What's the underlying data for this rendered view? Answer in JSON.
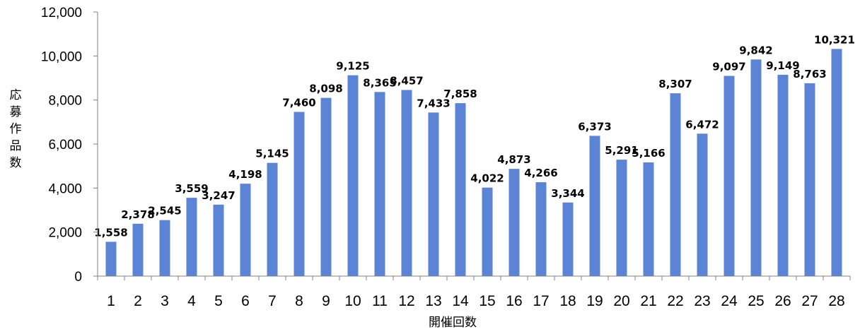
{
  "chart_data": {
    "type": "bar",
    "categories": [
      "1",
      "2",
      "3",
      "4",
      "5",
      "6",
      "7",
      "8",
      "9",
      "10",
      "11",
      "12",
      "13",
      "14",
      "15",
      "16",
      "17",
      "18",
      "19",
      "20",
      "21",
      "22",
      "23",
      "24",
      "25",
      "26",
      "27",
      "28"
    ],
    "values": [
      1558,
      2378,
      2545,
      3559,
      3247,
      4198,
      5145,
      7460,
      8098,
      9125,
      8365,
      8457,
      7433,
      7858,
      4022,
      4873,
      4266,
      3344,
      6373,
      5291,
      5166,
      8307,
      6472,
      9097,
      9842,
      9149,
      8763,
      10321
    ],
    "value_labels": [
      "1,558",
      "2,378",
      "2,545",
      "3,559",
      "3,247",
      "4,198",
      "5,145",
      "7,460",
      "8,098",
      "9,125",
      "8,365",
      "8,457",
      "7,433",
      "7,858",
      "4,022",
      "4,873",
      "4,266",
      "3,344",
      "6,373",
      "5,291",
      "5,166",
      "8,307",
      "6,472",
      "9,097",
      "9,842",
      "9,149",
      "8,763",
      "10,321"
    ],
    "y_ticks": [
      0,
      2000,
      4000,
      6000,
      8000,
      10000,
      12000
    ],
    "y_tick_labels": [
      "0",
      "2,000",
      "4,000",
      "6,000",
      "8,000",
      "10,000",
      "12,000"
    ],
    "ylim": [
      0,
      12000
    ],
    "xlabel": "開催回数",
    "ylabel": "応募作品数",
    "title": "",
    "grid": false,
    "legend": "none",
    "bar_color": "#5b84d7",
    "axis_color": "#808080"
  }
}
